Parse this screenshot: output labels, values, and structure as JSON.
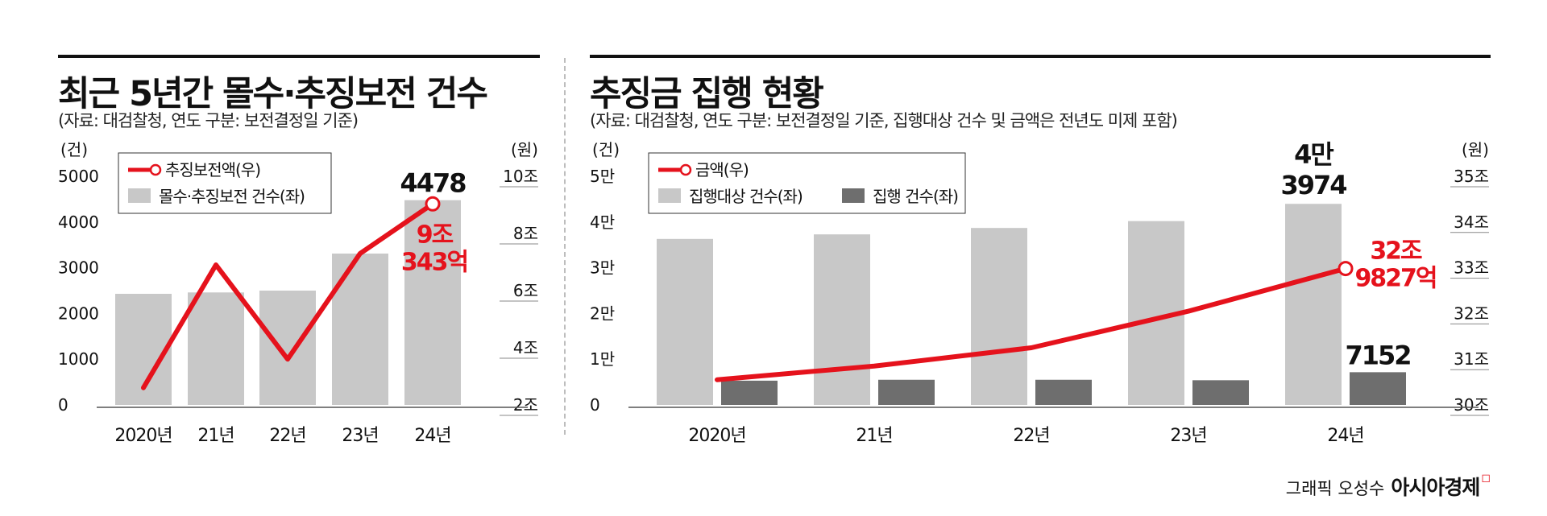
{
  "chart_data": [
    {
      "type": "bar",
      "title": "최근 5년간 몰수·추징보전 건수",
      "subtitle": "(자료: 대검찰청, 연도 구분: 보전결정일 기준)",
      "categories": [
        "2020년",
        "21년",
        "22년",
        "23년",
        "24년"
      ],
      "y_left": {
        "unit": "(건)",
        "ticks": [
          "5000",
          "4000",
          "3000",
          "2000",
          "1000",
          "0"
        ],
        "range": [
          0,
          5000
        ]
      },
      "y_right": {
        "unit": "(원)",
        "ticks": [
          "10조",
          "8조",
          "6조",
          "4조",
          "2조"
        ],
        "range": [
          2,
          10
        ]
      },
      "series": [
        {
          "name": "몰수·추징보전 건수(좌)",
          "type": "bar",
          "axis": "left",
          "color": "#c8c8c8",
          "values": [
            2430,
            2460,
            2500,
            3310,
            4478
          ]
        },
        {
          "name": "추징보전액(우)",
          "type": "line",
          "axis": "right",
          "color": "#e5121c",
          "values": [
            2.6,
            6.9,
            3.6,
            7.3,
            9.0343
          ]
        }
      ],
      "annotations": {
        "bar_label": "4478",
        "line_label_1": "9조",
        "line_label_2": "343억"
      },
      "legend": "top-left"
    },
    {
      "type": "bar",
      "title": "추징금 집행 현황",
      "subtitle": "(자료: 대검찰청, 연도 구분: 보전결정일 기준, 집행대상 건수 및 금액은 전년도 미제 포함)",
      "categories": [
        "2020년",
        "21년",
        "22년",
        "23년",
        "24년"
      ],
      "y_left": {
        "unit": "(건)",
        "ticks": [
          "5만",
          "4만",
          "3만",
          "2만",
          "1만",
          "0"
        ],
        "range": [
          0,
          50000
        ]
      },
      "y_right": {
        "unit": "(원)",
        "ticks": [
          "35조",
          "34조",
          "33조",
          "32조",
          "31조",
          "30조"
        ],
        "range": [
          30,
          35
        ]
      },
      "series": [
        {
          "name": "집행대상 건수(좌)",
          "type": "bar",
          "axis": "left",
          "color": "#c8c8c8",
          "values": [
            36300,
            37300,
            38700,
            40200,
            43974
          ]
        },
        {
          "name": "집행 건수(좌)",
          "type": "bar",
          "axis": "left",
          "color": "#6e6e6e",
          "values": [
            5300,
            5500,
            5500,
            5400,
            7152
          ]
        },
        {
          "name": "금액(우)",
          "type": "line",
          "axis": "right",
          "color": "#e5121c",
          "values": [
            30.55,
            30.85,
            31.25,
            32.05,
            32.9827
          ]
        }
      ],
      "annotations": {
        "bar_label_1": "4만",
        "bar_label_2": "3974",
        "bar2_label": "7152",
        "line_label_1": "32조",
        "line_label_2": "9827억"
      },
      "legend": "top-left"
    }
  ],
  "credit": {
    "text": "그래픽 오성수",
    "brand": "아시아경제"
  }
}
